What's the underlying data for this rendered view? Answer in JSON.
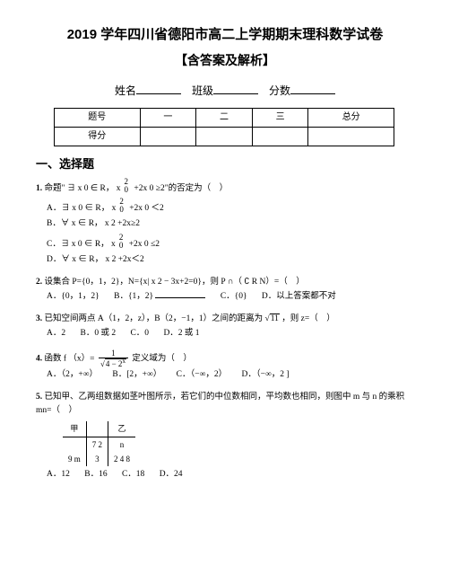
{
  "title": "2019 学年四川省德阳市高二上学期期末理科数学试卷",
  "subtitle": "【含答案及解析】",
  "info": {
    "name_label": "姓名",
    "class_label": "班级",
    "score_label": "分数"
  },
  "score_table": {
    "row1": [
      "题号",
      "一",
      "二",
      "三",
      "总分"
    ],
    "row2": [
      "得分",
      "",
      "",
      "",
      ""
    ]
  },
  "section1_heading": "一、选择题",
  "q1": {
    "num": "1.",
    "stem_a": "命题\" ∃  x 0 ∈ R，",
    "expr_top": "2",
    "expr_var": "x",
    "expr_sub": "0",
    "stem_b": " +2x 0 ≥2\"的否定为（　）",
    "A": "A．∃  x 0 ∈ R， x",
    "A_tail": " +2x 0 ＜2",
    "B": "B．∀  x ∈ R， x 2 +2x≥2",
    "C": "C．∃  x 0 ∈ R， x",
    "C_tail": " +2x 0 ≤2",
    "D": "D．∀  x ∈ R， x 2 +2x＜2"
  },
  "q2": {
    "num": "2.",
    "stem": "设集合 P={0，1，2}，N={x| x 2  − 3x+2=0}，则 P ∩（  ∁ R N）=（　）",
    "A": "A．{0，1，2}",
    "B": "B．{1，2}",
    "B_blank": true,
    "C": "C．{0}",
    "D": "D．以上答案都不对"
  },
  "q3": {
    "num": "3.",
    "stem_a": "已知空间两点 A（1，2，z），B（2，−1，1）之间的距离为 ",
    "sqrt_val": "11",
    "stem_b": " ，则 z=（　）",
    "A": "A．2",
    "B": "B．0 或 2",
    "C": "C．0",
    "D": "D．2 或 1"
  },
  "q4": {
    "num": "4.",
    "stem_a": "函数 f （x）=",
    "frac_num": "1",
    "frac_den_a": "√",
    "frac_den_b": "4 − 2",
    "frac_den_sup": "x",
    "stem_b": " 定义域为（　）",
    "A": "A．（2，+∞）",
    "B": "B．[2，+∞）",
    "C": "C．（−∞，2）",
    "D": "D．（−∞，2 ]"
  },
  "q5": {
    "num": "5.",
    "stem": "已知甲、乙两组数据如茎叶图所示，若它们的中位数相同，平均数也相同，则图中 m 与 n 的乘积 mn=（　）",
    "table": {
      "hdr": [
        "甲",
        "",
        "乙"
      ],
      "r1": [
        "",
        "7 2",
        "n"
      ],
      "r2": [
        "9 m",
        "3",
        "2 4 8"
      ]
    },
    "A": "A．12",
    "B": "B．16",
    "C": "C．18",
    "D": "D．24"
  },
  "colors": {
    "text": "#000000",
    "bg": "#ffffff"
  }
}
